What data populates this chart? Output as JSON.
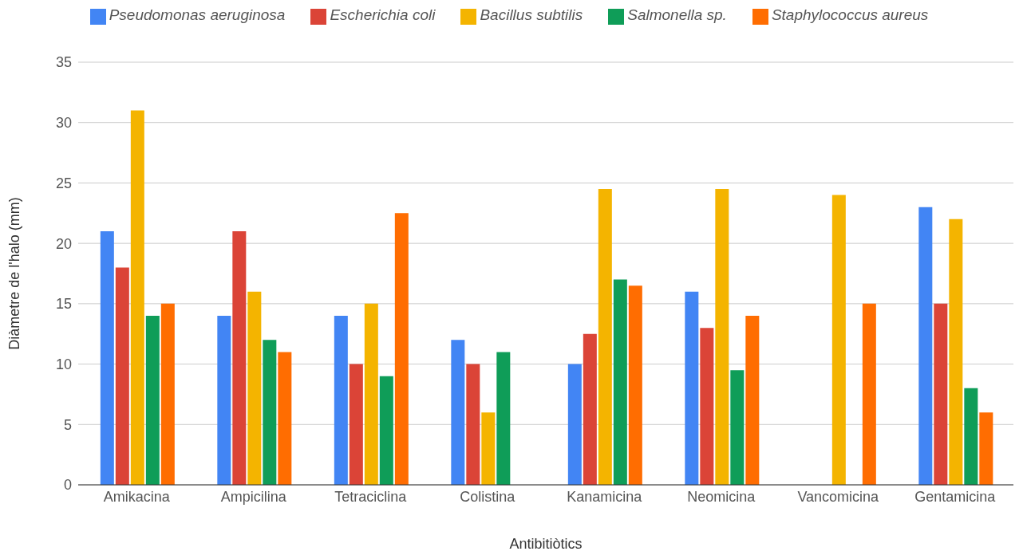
{
  "chart_data": {
    "type": "bar",
    "xlabel": "Antibitiòtics",
    "ylabel": "Diàmetre de l'halo (mm)",
    "categories": [
      "Amikacina",
      "Ampicilina",
      "Tetraciclina",
      "Colistina",
      "Kanamicina",
      "Neomicina",
      "Vancomicina",
      "Gentamicina"
    ],
    "series": [
      {
        "name": "Pseudomonas aeruginosa",
        "color": "#4285f4",
        "values": [
          21,
          14,
          14,
          12,
          10,
          16,
          null,
          23
        ]
      },
      {
        "name": "Escherichia coli",
        "color": "#db4437",
        "values": [
          18,
          21,
          10,
          10,
          12.5,
          13,
          null,
          15
        ]
      },
      {
        "name": "Bacillus subtilis",
        "color": "#f4b400",
        "values": [
          31,
          16,
          15,
          6,
          24.5,
          24.5,
          24,
          22
        ]
      },
      {
        "name": "Salmonella sp.",
        "color": "#0f9d58",
        "values": [
          14,
          12,
          9,
          11,
          17,
          9.5,
          null,
          8
        ]
      },
      {
        "name": "Staphylococcus aureus",
        "color": "#ff6d01",
        "values": [
          15,
          11,
          22.5,
          null,
          16.5,
          14,
          15,
          6
        ]
      }
    ],
    "ylim": [
      0,
      35
    ],
    "yticks": [
      0,
      5,
      10,
      15,
      20,
      25,
      30,
      35
    ],
    "grid": "y",
    "legend": "top"
  }
}
